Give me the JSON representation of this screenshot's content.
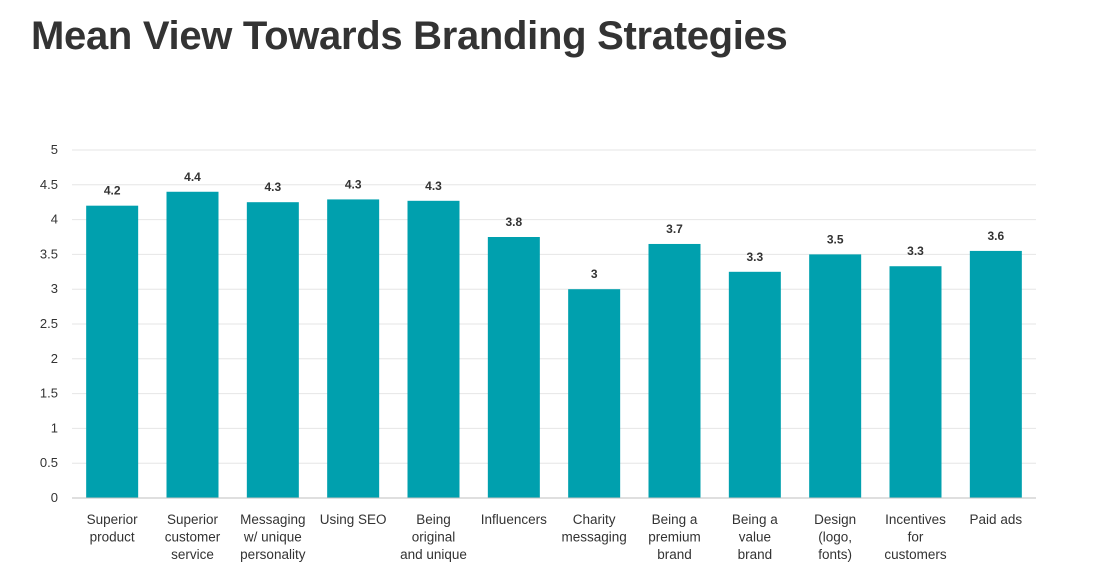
{
  "chart_data": {
    "type": "bar",
    "title": "Mean View Towards Branding Strategies",
    "xlabel": "",
    "ylabel": "",
    "ylim": [
      0,
      5
    ],
    "yticks": [
      "0",
      "0.5",
      "1",
      "1.5",
      "2",
      "2.5",
      "3",
      "3.5",
      "4",
      "4.5",
      "5"
    ],
    "grid": true,
    "bar_color": "#00a0ae",
    "categories": [
      [
        "Superior",
        "product"
      ],
      [
        "Superior",
        "customer",
        "service"
      ],
      [
        "Messaging",
        "w/ unique",
        "personality"
      ],
      [
        "Using SEO"
      ],
      [
        "Being",
        "original",
        "and unique"
      ],
      [
        "Influencers"
      ],
      [
        "Charity",
        "messaging"
      ],
      [
        "Being a",
        "premium",
        "brand"
      ],
      [
        "Being a",
        "value",
        "brand"
      ],
      [
        "Design",
        "(logo,",
        "fonts)"
      ],
      [
        "Incentives",
        "for",
        "customers"
      ],
      [
        "Paid ads"
      ]
    ],
    "values": [
      4.2,
      4.4,
      4.25,
      4.29,
      4.27,
      3.75,
      3.0,
      3.65,
      3.25,
      3.5,
      3.33,
      3.55
    ],
    "data_labels": [
      "4.2",
      "4.4",
      "4.3",
      "4.3",
      "4.3",
      "3.8",
      "3",
      "3.7",
      "3.3",
      "3.5",
      "3.3",
      "3.6"
    ]
  }
}
